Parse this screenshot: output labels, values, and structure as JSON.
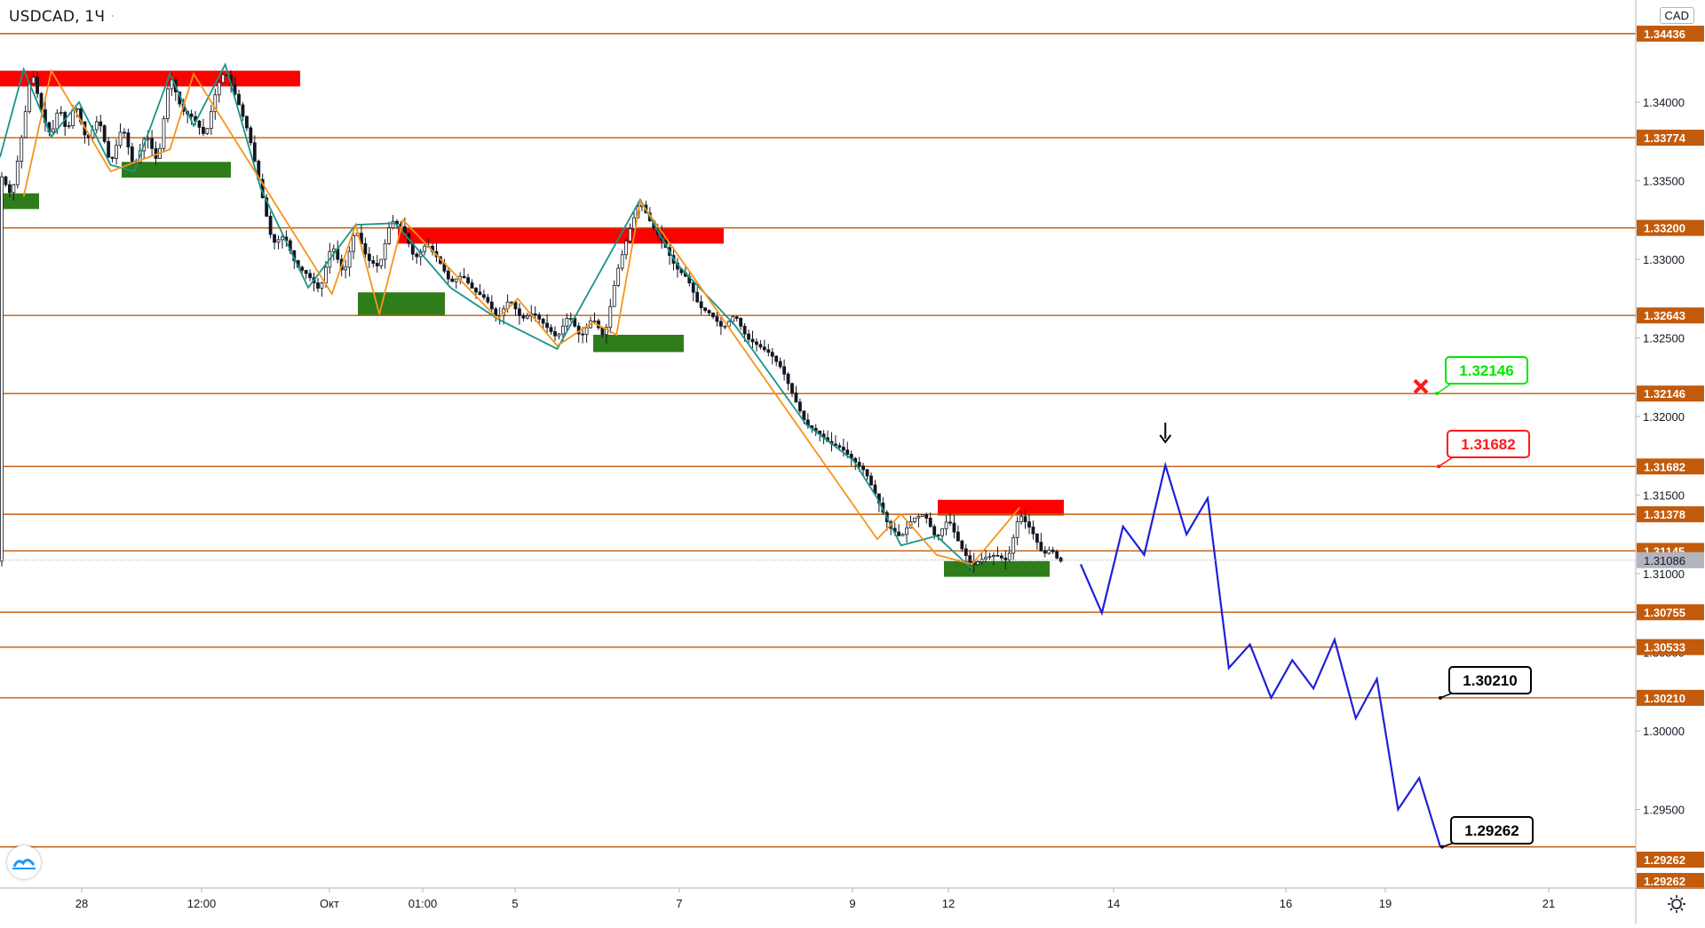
{
  "header": {
    "symbol": "USDCAD",
    "timeframe": "1Ч",
    "currency": "CAD"
  },
  "colors": {
    "level_line": "#c25b0c",
    "level_tag_bg": "#c25b0c",
    "last_price_tag_bg": "#b2b5be",
    "resistance_zone": "#ff0000",
    "support_zone": "#2e7d1a",
    "candle": "#131722",
    "zigzag_orange": "#f7931a",
    "zigzag_teal": "#1a9488",
    "forecast": "#1f1fd8",
    "label_green": "#00e600",
    "label_red": "#ff1a1a",
    "label_black": "#000000"
  },
  "chart_data": {
    "type": "candlestick",
    "title": "USDCAD, 1Ч",
    "ylim": [
      1.29,
      1.3465
    ],
    "x_ticks": [
      "28",
      "12:00",
      "Окт",
      "01:00",
      "5",
      "7",
      "9",
      "12",
      "14",
      "16",
      "19",
      "21"
    ],
    "y_ticks": [
      "1.34000",
      "1.33500",
      "1.33000",
      "1.32500",
      "1.32000",
      "1.31500",
      "1.31000",
      "1.30500",
      "1.30000",
      "1.29500"
    ],
    "levels": [
      "1.34436",
      "1.33774",
      "1.33200",
      "1.32643",
      "1.32146",
      "1.31682",
      "1.31378",
      "1.31145",
      "1.30755",
      "1.30533",
      "1.30210",
      "1.29262",
      "1.29262"
    ],
    "last_price": "1.31086",
    "price_path_approx": [
      [
        0,
        1.3355
      ],
      [
        3,
        1.334
      ],
      [
        6,
        1.3385
      ],
      [
        8,
        1.3421
      ],
      [
        11,
        1.339
      ],
      [
        13,
        1.3378
      ],
      [
        15,
        1.3398
      ],
      [
        17,
        1.338
      ],
      [
        19,
        1.34
      ],
      [
        22,
        1.3375
      ],
      [
        25,
        1.339
      ],
      [
        28,
        1.336
      ],
      [
        31,
        1.3385
      ],
      [
        34,
        1.3358
      ],
      [
        37,
        1.338
      ],
      [
        40,
        1.3361
      ],
      [
        43,
        1.3418
      ],
      [
        46,
        1.3395
      ],
      [
        49,
        1.339
      ],
      [
        52,
        1.3378
      ],
      [
        55,
        1.341
      ],
      [
        57,
        1.342
      ],
      [
        60,
        1.3402
      ],
      [
        63,
        1.338
      ],
      [
        66,
        1.3345
      ],
      [
        69,
        1.331
      ],
      [
        72,
        1.3315
      ],
      [
        75,
        1.3296
      ],
      [
        78,
        1.329
      ],
      [
        81,
        1.328
      ],
      [
        84,
        1.331
      ],
      [
        87,
        1.329
      ],
      [
        90,
        1.332
      ],
      [
        93,
        1.33
      ],
      [
        96,
        1.3295
      ],
      [
        99,
        1.3325
      ],
      [
        102,
        1.332
      ],
      [
        105,
        1.33
      ],
      [
        108,
        1.331
      ],
      [
        111,
        1.33
      ],
      [
        114,
        1.3285
      ],
      [
        117,
        1.329
      ],
      [
        120,
        1.328
      ],
      [
        123,
        1.3275
      ],
      [
        126,
        1.3262
      ],
      [
        129,
        1.3275
      ],
      [
        132,
        1.3262
      ],
      [
        135,
        1.3266
      ],
      [
        138,
        1.3258
      ],
      [
        141,
        1.325
      ],
      [
        144,
        1.3265
      ],
      [
        147,
        1.325
      ],
      [
        150,
        1.3263
      ],
      [
        153,
        1.325
      ],
      [
        156,
        1.329
      ],
      [
        159,
        1.3316
      ],
      [
        162,
        1.3337
      ],
      [
        165,
        1.3322
      ],
      [
        168,
        1.331
      ],
      [
        171,
        1.3295
      ],
      [
        174,
        1.3288
      ],
      [
        177,
        1.327
      ],
      [
        180,
        1.3265
      ],
      [
        183,
        1.3256
      ],
      [
        186,
        1.3265
      ],
      [
        189,
        1.325
      ],
      [
        192,
        1.3245
      ],
      [
        195,
        1.324
      ],
      [
        198,
        1.323
      ],
      [
        201,
        1.3212
      ],
      [
        204,
        1.3195
      ],
      [
        207,
        1.319
      ],
      [
        210,
        1.3183
      ],
      [
        213,
        1.318
      ],
      [
        216,
        1.3172
      ],
      [
        219,
        1.3165
      ],
      [
        222,
        1.3148
      ],
      [
        225,
        1.313
      ],
      [
        228,
        1.3123
      ],
      [
        231,
        1.3135
      ],
      [
        234,
        1.3138
      ],
      [
        237,
        1.3122
      ],
      [
        240,
        1.3135
      ],
      [
        243,
        1.3118
      ],
      [
        246,
        1.3105
      ],
      [
        249,
        1.311
      ],
      [
        252,
        1.3112
      ],
      [
        255,
        1.3108
      ],
      [
        258,
        1.3138
      ],
      [
        261,
        1.3128
      ],
      [
        264,
        1.3112
      ],
      [
        266,
        1.3116
      ],
      [
        268,
        1.3108
      ]
    ],
    "forecast_path": [
      1.3106,
      1.3075,
      1.313,
      1.3112,
      1.3169,
      1.3125,
      1.3148,
      1.304,
      1.3055,
      1.3021,
      1.3045,
      1.3027,
      1.3058,
      1.3008,
      1.3033,
      1.295,
      1.297,
      1.2926
    ],
    "resistance_zones": [
      [
        1.341,
        1.342
      ],
      [
        1.331,
        1.332
      ],
      [
        1.3137,
        1.3147
      ]
    ],
    "support_zones": [
      [
        1.3332,
        1.3342
      ],
      [
        1.3352,
        1.3362
      ],
      [
        1.3264,
        1.3279
      ],
      [
        1.3241,
        1.3252
      ],
      [
        1.3098,
        1.3108
      ]
    ],
    "annotations": [
      {
        "text": "1.32146",
        "kind": "target-hit",
        "value": 1.32146
      },
      {
        "text": "1.31682",
        "kind": "stop",
        "value": 1.31682
      },
      {
        "text": "1.30210",
        "kind": "target",
        "value": 1.3021
      },
      {
        "text": "1.29262",
        "kind": "target",
        "value": 1.29262
      }
    ],
    "grid": false,
    "legend": "none"
  }
}
